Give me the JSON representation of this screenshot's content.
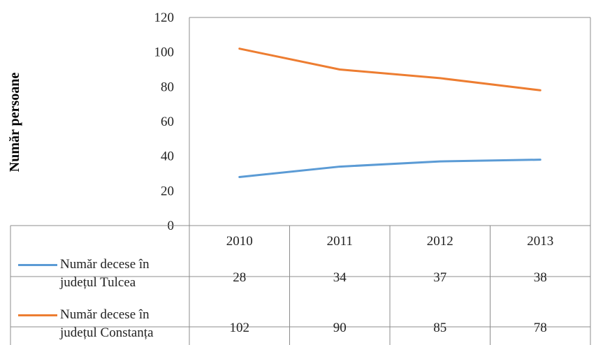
{
  "chart_data": {
    "type": "line",
    "categories": [
      "2010",
      "2011",
      "2012",
      "2013"
    ],
    "series": [
      {
        "name_line1": "Număr decese în",
        "name_line2": "județul Tulcea",
        "color": "#5b9bd5",
        "values": [
          28,
          34,
          37,
          38
        ]
      },
      {
        "name_line1": "Număr decese în",
        "name_line2": "județul Constanța",
        "color": "#ed7d31",
        "values": [
          102,
          90,
          85,
          78
        ]
      }
    ],
    "ylabel": "Număr persoane",
    "ylim": [
      0,
      120
    ],
    "yticks": [
      0,
      20,
      40,
      60,
      80,
      100,
      120
    ],
    "grid": false,
    "legend": "data-table"
  }
}
